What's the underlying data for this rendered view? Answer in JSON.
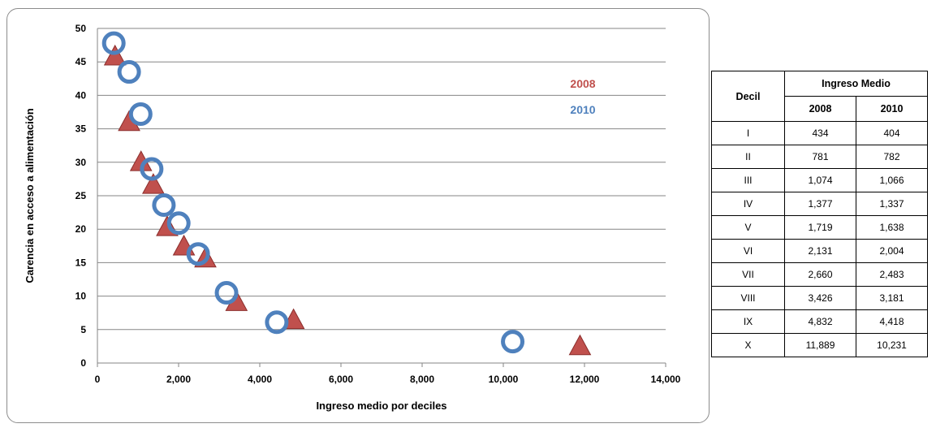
{
  "chart_data": {
    "type": "scatter",
    "xlabel": "Ingreso medio por deciles",
    "ylabel": "Carencia  en acceso a alimentación",
    "xlim": [
      0,
      14000
    ],
    "ylim": [
      0,
      50
    ],
    "x_ticks": [
      "0",
      "2,000",
      "4,000",
      "6,000",
      "8,000",
      "10,000",
      "12,000",
      "14,000"
    ],
    "y_ticks": [
      "0",
      "5",
      "10",
      "15",
      "20",
      "25",
      "30",
      "35",
      "40",
      "45",
      "50"
    ],
    "grid": "horizontal",
    "legend": [
      "2008",
      "2010"
    ],
    "series": [
      {
        "name": "2008",
        "marker": "triangle",
        "color": "#c0504d",
        "x": [
          434,
          781,
          1074,
          1377,
          1719,
          2131,
          2660,
          3426,
          4832,
          11889
        ],
        "y": [
          46.0,
          36.2,
          30.2,
          26.8,
          20.5,
          17.6,
          15.8,
          9.3,
          6.6,
          2.7
        ]
      },
      {
        "name": "2010",
        "marker": "circle",
        "color": "#4f81bd",
        "x": [
          404,
          782,
          1066,
          1337,
          1638,
          2004,
          2483,
          3181,
          4418,
          10231
        ],
        "y": [
          47.8,
          43.5,
          37.2,
          29.0,
          23.6,
          20.9,
          16.3,
          10.5,
          6.1,
          3.2
        ]
      }
    ]
  },
  "table": {
    "decil_header": "Decil",
    "ingreso_header": "Ingreso Medio",
    "year_headers": [
      "2008",
      "2010"
    ],
    "rows": [
      {
        "decil": "I",
        "v2008": "434",
        "v2010": "404"
      },
      {
        "decil": "II",
        "v2008": "781",
        "v2010": "782"
      },
      {
        "decil": "III",
        "v2008": "1,074",
        "v2010": "1,066"
      },
      {
        "decil": "IV",
        "v2008": "1,377",
        "v2010": "1,337"
      },
      {
        "decil": "V",
        "v2008": "1,719",
        "v2010": "1,638"
      },
      {
        "decil": "VI",
        "v2008": "2,131",
        "v2010": "2,004"
      },
      {
        "decil": "VII",
        "v2008": "2,660",
        "v2010": "2,483"
      },
      {
        "decil": "VIII",
        "v2008": "3,426",
        "v2010": "3,181"
      },
      {
        "decil": "IX",
        "v2008": "4,832",
        "v2010": "4,418"
      },
      {
        "decil": "X",
        "v2008": "11,889",
        "v2010": "10,231"
      }
    ]
  }
}
